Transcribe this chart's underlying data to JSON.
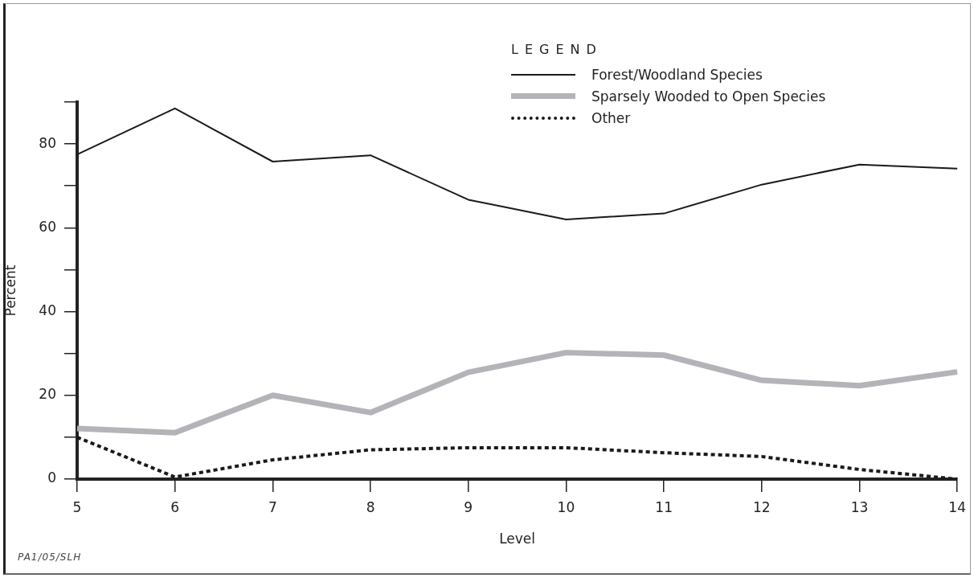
{
  "chart_data": {
    "type": "line",
    "xlabel": "Level",
    "ylabel": "Percent",
    "legend_title": "LEGEND",
    "legend": "top right",
    "grid": false,
    "marker": "none",
    "x": [
      5,
      6,
      7,
      8,
      9,
      10,
      11,
      12,
      13,
      14
    ],
    "xlim": [
      5,
      14
    ],
    "xticks": [
      5,
      6,
      7,
      8,
      9,
      10,
      11,
      12,
      13,
      14
    ],
    "ylim": [
      0,
      90
    ],
    "yticks": [
      0,
      {
        "value": 10,
        "label": null
      },
      20,
      {
        "value": 30,
        "label": null
      },
      40,
      {
        "value": 50,
        "label": null
      },
      60,
      {
        "value": 70,
        "label": null
      },
      80,
      {
        "value": 90,
        "label": null
      }
    ],
    "series": [
      {
        "name": "Forest/Woodland Species",
        "color": "#1a1a1a",
        "line_style": "solid",
        "values": [
          77.5,
          88.5,
          75.8,
          77.3,
          66.7,
          62,
          63.4,
          70.3,
          75.1,
          74.1
        ]
      },
      {
        "name": "Sparsely Wooded to Open Species",
        "color": "#b3b4b8",
        "line_style": "solid",
        "values": [
          12.1,
          11.1,
          20,
          15.9,
          25.5,
          30.2,
          29.6,
          23.6,
          22.3,
          25.6
        ]
      },
      {
        "name": "Other",
        "color": "#1a1a1a",
        "line_style": "dotted",
        "values": [
          10,
          0.5,
          4.6,
          7,
          7.5,
          7.5,
          6.3,
          5.4,
          2.3,
          0
        ]
      }
    ],
    "annotations": [
      "PA1/05/SLH"
    ]
  }
}
